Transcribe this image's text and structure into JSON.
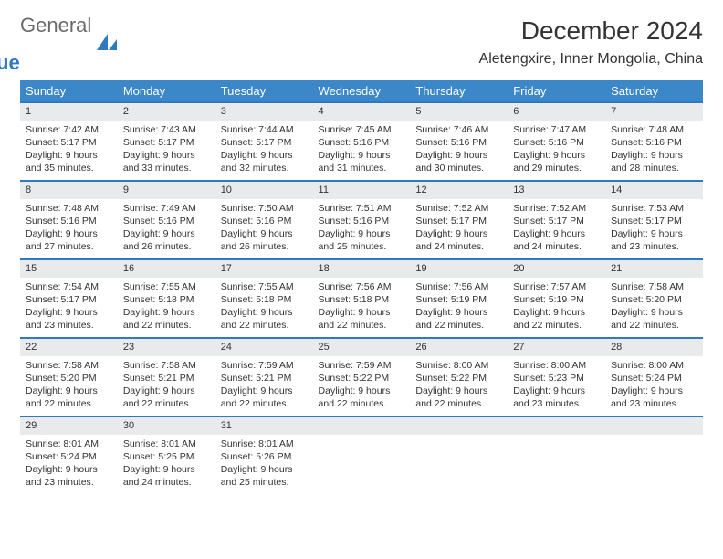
{
  "logo": {
    "line1": "General",
    "line2": "Blue"
  },
  "title": "December 2024",
  "location": "Aletengxire, Inner Mongolia, China",
  "colors": {
    "header_bg": "#3b87c8",
    "accent_line": "#2f78c2",
    "daynum_bg": "#e9eaeb",
    "text": "#333333",
    "logo_gray": "#6a6a6a",
    "logo_blue": "#2f78c2",
    "page_bg": "#ffffff"
  },
  "day_headers": [
    "Sunday",
    "Monday",
    "Tuesday",
    "Wednesday",
    "Thursday",
    "Friday",
    "Saturday"
  ],
  "weeks": [
    [
      {
        "n": "1",
        "sr": "7:42 AM",
        "ss": "5:17 PM",
        "dl": "9 hours and 35 minutes."
      },
      {
        "n": "2",
        "sr": "7:43 AM",
        "ss": "5:17 PM",
        "dl": "9 hours and 33 minutes."
      },
      {
        "n": "3",
        "sr": "7:44 AM",
        "ss": "5:17 PM",
        "dl": "9 hours and 32 minutes."
      },
      {
        "n": "4",
        "sr": "7:45 AM",
        "ss": "5:16 PM",
        "dl": "9 hours and 31 minutes."
      },
      {
        "n": "5",
        "sr": "7:46 AM",
        "ss": "5:16 PM",
        "dl": "9 hours and 30 minutes."
      },
      {
        "n": "6",
        "sr": "7:47 AM",
        "ss": "5:16 PM",
        "dl": "9 hours and 29 minutes."
      },
      {
        "n": "7",
        "sr": "7:48 AM",
        "ss": "5:16 PM",
        "dl": "9 hours and 28 minutes."
      }
    ],
    [
      {
        "n": "8",
        "sr": "7:48 AM",
        "ss": "5:16 PM",
        "dl": "9 hours and 27 minutes."
      },
      {
        "n": "9",
        "sr": "7:49 AM",
        "ss": "5:16 PM",
        "dl": "9 hours and 26 minutes."
      },
      {
        "n": "10",
        "sr": "7:50 AM",
        "ss": "5:16 PM",
        "dl": "9 hours and 26 minutes."
      },
      {
        "n": "11",
        "sr": "7:51 AM",
        "ss": "5:16 PM",
        "dl": "9 hours and 25 minutes."
      },
      {
        "n": "12",
        "sr": "7:52 AM",
        "ss": "5:17 PM",
        "dl": "9 hours and 24 minutes."
      },
      {
        "n": "13",
        "sr": "7:52 AM",
        "ss": "5:17 PM",
        "dl": "9 hours and 24 minutes."
      },
      {
        "n": "14",
        "sr": "7:53 AM",
        "ss": "5:17 PM",
        "dl": "9 hours and 23 minutes."
      }
    ],
    [
      {
        "n": "15",
        "sr": "7:54 AM",
        "ss": "5:17 PM",
        "dl": "9 hours and 23 minutes."
      },
      {
        "n": "16",
        "sr": "7:55 AM",
        "ss": "5:18 PM",
        "dl": "9 hours and 22 minutes."
      },
      {
        "n": "17",
        "sr": "7:55 AM",
        "ss": "5:18 PM",
        "dl": "9 hours and 22 minutes."
      },
      {
        "n": "18",
        "sr": "7:56 AM",
        "ss": "5:18 PM",
        "dl": "9 hours and 22 minutes."
      },
      {
        "n": "19",
        "sr": "7:56 AM",
        "ss": "5:19 PM",
        "dl": "9 hours and 22 minutes."
      },
      {
        "n": "20",
        "sr": "7:57 AM",
        "ss": "5:19 PM",
        "dl": "9 hours and 22 minutes."
      },
      {
        "n": "21",
        "sr": "7:58 AM",
        "ss": "5:20 PM",
        "dl": "9 hours and 22 minutes."
      }
    ],
    [
      {
        "n": "22",
        "sr": "7:58 AM",
        "ss": "5:20 PM",
        "dl": "9 hours and 22 minutes."
      },
      {
        "n": "23",
        "sr": "7:58 AM",
        "ss": "5:21 PM",
        "dl": "9 hours and 22 minutes."
      },
      {
        "n": "24",
        "sr": "7:59 AM",
        "ss": "5:21 PM",
        "dl": "9 hours and 22 minutes."
      },
      {
        "n": "25",
        "sr": "7:59 AM",
        "ss": "5:22 PM",
        "dl": "9 hours and 22 minutes."
      },
      {
        "n": "26",
        "sr": "8:00 AM",
        "ss": "5:22 PM",
        "dl": "9 hours and 22 minutes."
      },
      {
        "n": "27",
        "sr": "8:00 AM",
        "ss": "5:23 PM",
        "dl": "9 hours and 23 minutes."
      },
      {
        "n": "28",
        "sr": "8:00 AM",
        "ss": "5:24 PM",
        "dl": "9 hours and 23 minutes."
      }
    ],
    [
      {
        "n": "29",
        "sr": "8:01 AM",
        "ss": "5:24 PM",
        "dl": "9 hours and 23 minutes."
      },
      {
        "n": "30",
        "sr": "8:01 AM",
        "ss": "5:25 PM",
        "dl": "9 hours and 24 minutes."
      },
      {
        "n": "31",
        "sr": "8:01 AM",
        "ss": "5:26 PM",
        "dl": "9 hours and 25 minutes."
      },
      null,
      null,
      null,
      null
    ]
  ],
  "labels": {
    "sunrise": "Sunrise:",
    "sunset": "Sunset:",
    "daylight": "Daylight:"
  }
}
